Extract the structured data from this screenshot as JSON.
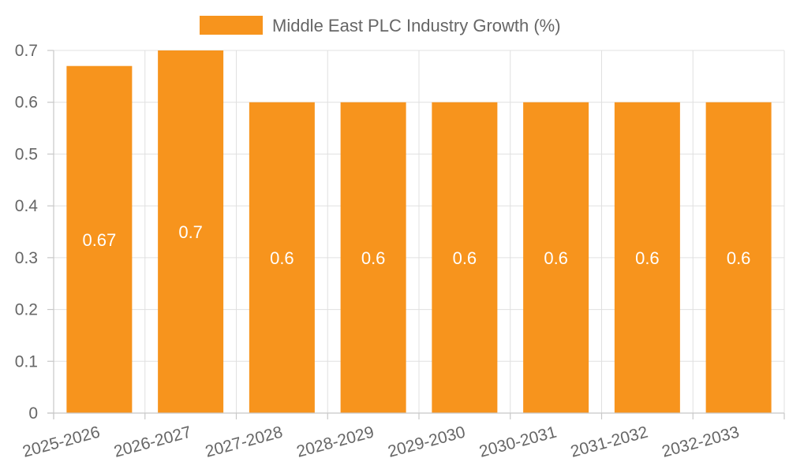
{
  "chart_data": {
    "type": "bar",
    "title": "",
    "xlabel": "",
    "ylabel": "",
    "categories": [
      "2025-2026",
      "2026-2027",
      "2027-2028",
      "2028-2029",
      "2029-2030",
      "2030-2031",
      "2031-2032",
      "2032-2033"
    ],
    "series": [
      {
        "name": "Middle East PLC Industry Growth (%)",
        "values": [
          0.67,
          0.7,
          0.6,
          0.6,
          0.6,
          0.6,
          0.6,
          0.6
        ],
        "color": "#F7941D"
      }
    ],
    "data_labels": [
      "0.67",
      "0.7",
      "0.6",
      "0.6",
      "0.6",
      "0.6",
      "0.6",
      "0.6"
    ],
    "ylim": [
      0,
      0.7
    ],
    "yticks": [
      "0",
      "0.1",
      "0.2",
      "0.3",
      "0.4",
      "0.5",
      "0.6",
      "0.7"
    ],
    "grid": true,
    "legend_position": "top-center",
    "data_label_color": "#FFFFFF",
    "grid_color": "#E0E0E0",
    "text_color": "#666666"
  }
}
